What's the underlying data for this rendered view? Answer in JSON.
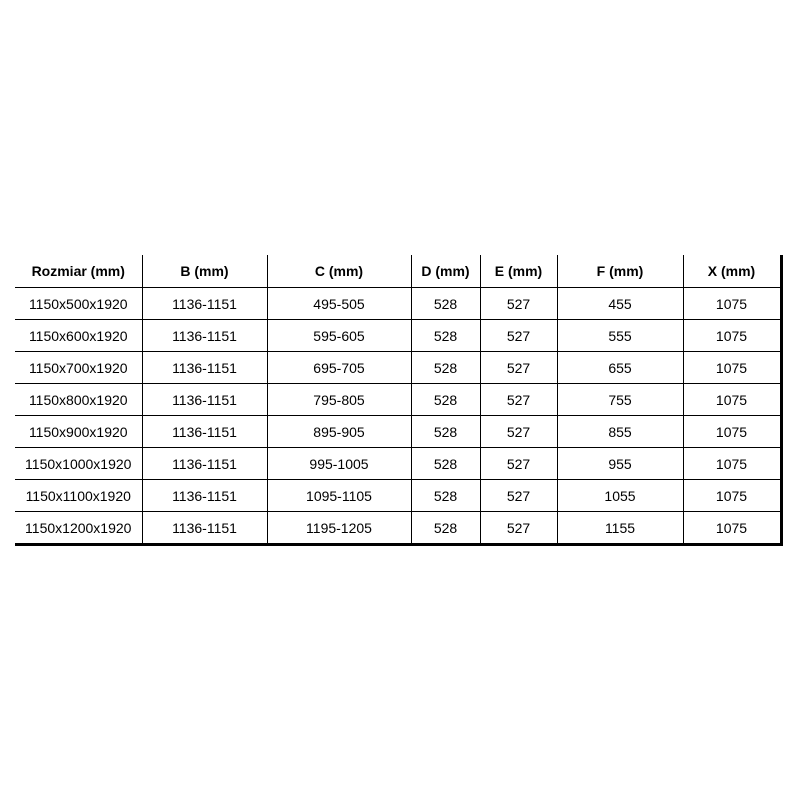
{
  "chart_data": {
    "type": "table",
    "columns": [
      "Rozmiar (mm)",
      "B (mm)",
      "C (mm)",
      "D (mm)",
      "E (mm)",
      "F (mm)",
      "X (mm)"
    ],
    "rows": [
      [
        "1150x500x1920",
        "1136-1151",
        "495-505",
        "528",
        "527",
        "455",
        "1075"
      ],
      [
        "1150x600x1920",
        "1136-1151",
        "595-605",
        "528",
        "527",
        "555",
        "1075"
      ],
      [
        "1150x700x1920",
        "1136-1151",
        "695-705",
        "528",
        "527",
        "655",
        "1075"
      ],
      [
        "1150x800x1920",
        "1136-1151",
        "795-805",
        "528",
        "527",
        "755",
        "1075"
      ],
      [
        "1150x900x1920",
        "1136-1151",
        "895-905",
        "528",
        "527",
        "855",
        "1075"
      ],
      [
        "1150x1000x1920",
        "1136-1151",
        "995-1005",
        "528",
        "527",
        "955",
        "1075"
      ],
      [
        "1150x1100x1920",
        "1136-1151",
        "1095-1105",
        "528",
        "527",
        "1055",
        "1075"
      ],
      [
        "1150x1200x1920",
        "1136-1151",
        "1195-1205",
        "528",
        "527",
        "1155",
        "1075"
      ]
    ],
    "layout": {
      "grid": true,
      "header_bold": true,
      "outer_borders": "right and bottom thick, no top or left"
    }
  },
  "colors": {
    "text": "#000000",
    "border": "#000000",
    "background": "#ffffff"
  }
}
